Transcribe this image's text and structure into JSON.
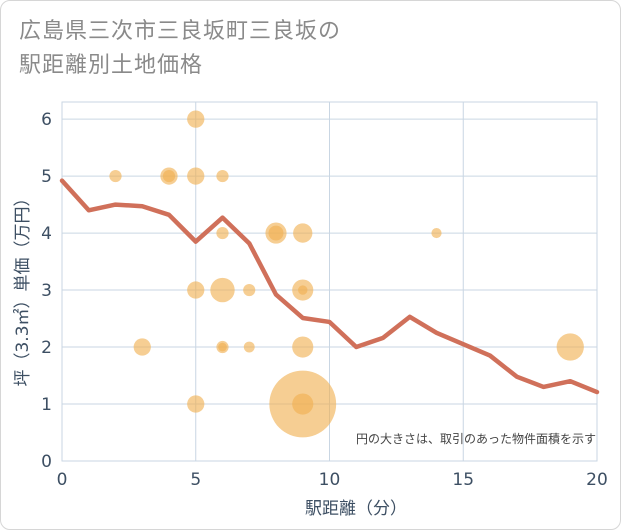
{
  "chart_data": {
    "type": "scatter",
    "title_lines": [
      "広島県三次市三良坂町三良坂の",
      "駅距離別土地価格"
    ],
    "xlabel": "駅距離（分）",
    "ylabel": "坪（3.3㎡）単価（万円）",
    "xlim": [
      0,
      20
    ],
    "ylim": [
      0,
      6.3
    ],
    "x_ticks": [
      "0",
      "5",
      "10",
      "15",
      "20"
    ],
    "y_ticks": [
      "0",
      "1",
      "2",
      "3",
      "4",
      "5",
      "6"
    ],
    "x_tick_values": [
      0,
      5,
      10,
      15,
      20
    ],
    "y_tick_values": [
      0,
      1,
      2,
      3,
      4,
      5,
      6
    ],
    "grid": true,
    "note": "円の大きさは、取引のあった物件面積を示す",
    "colors": {
      "bubble": "#f0b050",
      "line": "#d0705a",
      "grid": "#c9d6e3",
      "axis_text": "#3d4f63"
    },
    "bubbles": [
      {
        "x": 2,
        "y": 5,
        "size": 1
      },
      {
        "x": 3,
        "y": 2,
        "size": 2
      },
      {
        "x": 4,
        "y": 5,
        "size": 2
      },
      {
        "x": 4,
        "y": 5,
        "size": 1
      },
      {
        "x": 5,
        "y": 6,
        "size": 2
      },
      {
        "x": 5,
        "y": 5,
        "size": 2
      },
      {
        "x": 5,
        "y": 3,
        "size": 2
      },
      {
        "x": 5,
        "y": 1,
        "size": 2
      },
      {
        "x": 6,
        "y": 5,
        "size": 1
      },
      {
        "x": 6,
        "y": 4,
        "size": 1
      },
      {
        "x": 6,
        "y": 3,
        "size": 4
      },
      {
        "x": 6,
        "y": 2,
        "size": 1
      },
      {
        "x": 6,
        "y": 2,
        "size": 0.5
      },
      {
        "x": 7,
        "y": 3,
        "size": 1
      },
      {
        "x": 7,
        "y": 2,
        "size": 0.8
      },
      {
        "x": 8,
        "y": 4,
        "size": 3
      },
      {
        "x": 8,
        "y": 4,
        "size": 1.5
      },
      {
        "x": 9,
        "y": 4,
        "size": 2.5
      },
      {
        "x": 9,
        "y": 3,
        "size": 3
      },
      {
        "x": 9,
        "y": 3,
        "size": 0.6
      },
      {
        "x": 9,
        "y": 2,
        "size": 3
      },
      {
        "x": 9,
        "y": 1,
        "size": 30
      },
      {
        "x": 9,
        "y": 1,
        "size": 3
      },
      {
        "x": 14,
        "y": 4,
        "size": 0.7
      },
      {
        "x": 19,
        "y": 2,
        "size": 5
      }
    ],
    "line": {
      "x": [
        0,
        1,
        2,
        3,
        4,
        5,
        6,
        7,
        8,
        9,
        10,
        11,
        12,
        13,
        14,
        15,
        16,
        17,
        18,
        19,
        20
      ],
      "y": [
        4.92,
        4.4,
        4.5,
        4.47,
        4.32,
        3.85,
        4.27,
        3.82,
        2.92,
        2.51,
        2.44,
        2.0,
        2.16,
        2.53,
        2.25,
        2.05,
        1.85,
        1.48,
        1.3,
        1.4,
        1.21
      ]
    }
  }
}
